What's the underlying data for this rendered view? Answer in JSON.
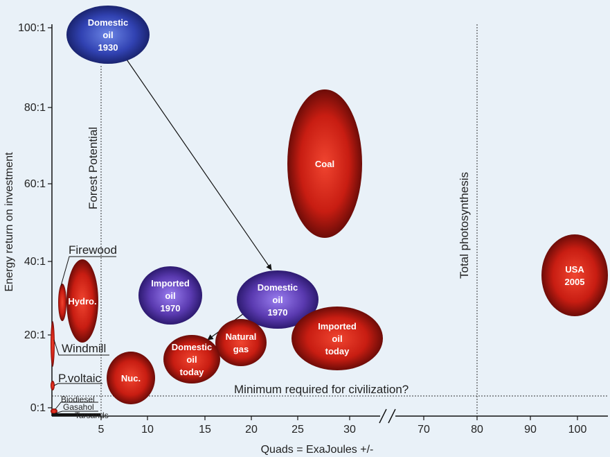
{
  "chart_data": {
    "type": "bubble",
    "xlabel": "Quads = ExaJoules +/-",
    "ylabel": "Energy return on investment",
    "x_ticks_left": [
      "5",
      "10",
      "15",
      "20",
      "25",
      "30"
    ],
    "x_ticks_right": [
      "70",
      "80",
      "90",
      "100"
    ],
    "y_ticks": [
      "0:1",
      "20:1",
      "40:1",
      "60:1",
      "80:1",
      "100:1"
    ],
    "ylim": [
      0,
      100
    ],
    "x_axis_break": "//",
    "reference_lines": [
      {
        "name": "Forest Potential",
        "orientation": "vertical",
        "x": 5
      },
      {
        "name": "Total photosynthesis",
        "orientation": "vertical",
        "x": 80
      },
      {
        "name": "Minimum required for civilization?",
        "orientation": "horizontal",
        "y": 5
      }
    ],
    "bubbles": [
      {
        "name": "Domestic oil 1930",
        "lines": [
          "Domestic",
          "oil",
          "1930"
        ],
        "x": 5,
        "y": 100,
        "color": "#3040b0"
      },
      {
        "name": "Coal",
        "lines": [
          "Coal"
        ],
        "x": 27,
        "y": 67,
        "color": "#c62015"
      },
      {
        "name": "USA 2005",
        "lines": [
          "USA",
          "2005"
        ],
        "x": 100,
        "y": 37,
        "color": "#c62015"
      },
      {
        "name": "Imported oil 1970",
        "lines": [
          "Imported",
          "oil",
          "1970"
        ],
        "x": 12,
        "y": 31,
        "color": "#5a3ab0"
      },
      {
        "name": "Domestic oil 1970",
        "lines": [
          "Domestic",
          "oil",
          "1970"
        ],
        "x": 23,
        "y": 30,
        "color": "#5a3ab0"
      },
      {
        "name": "Hydro.",
        "lines": [
          "Hydro."
        ],
        "x": 3,
        "y": 29,
        "color": "#c62015"
      },
      {
        "name": "Imported oil today",
        "lines": [
          "Imported",
          "oil",
          "today"
        ],
        "x": 28,
        "y": 18,
        "color": "#c62015"
      },
      {
        "name": "Natural gas",
        "lines": [
          "Natural",
          "gas"
        ],
        "x": 18.5,
        "y": 17,
        "color": "#c62015"
      },
      {
        "name": "Domestic oil today",
        "lines": [
          "Domestic",
          "oil",
          "today"
        ],
        "x": 14,
        "y": 12,
        "color": "#c62015"
      },
      {
        "name": "Nuc.",
        "lines": [
          "Nuc."
        ],
        "x": 8.5,
        "y": 9,
        "color": "#c62015"
      }
    ],
    "side_labels": [
      {
        "name": "Firewood",
        "y": 30
      },
      {
        "name": "Windmill",
        "y": 18
      },
      {
        "name": "P.voltaic",
        "y": 8
      },
      {
        "name": "Biodiesel",
        "y": 2
      },
      {
        "name": "Gasahol",
        "y": 1
      },
      {
        "name": "Tarsands",
        "y": 0.5
      }
    ],
    "arrows": [
      {
        "from": "Domestic oil 1930",
        "to": "Domestic oil 1970"
      },
      {
        "from": "Domestic oil 1970",
        "to": "Domestic oil today"
      }
    ]
  }
}
